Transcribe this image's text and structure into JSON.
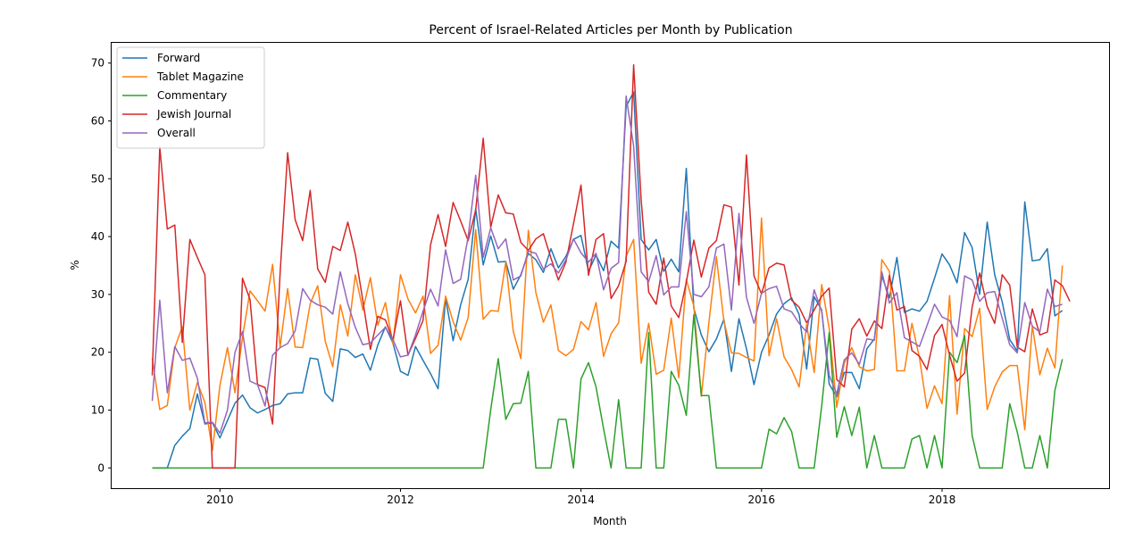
{
  "chart_data": {
    "type": "line",
    "title": "Percent of Israel-Related Articles per Month by Publication",
    "xlabel": "Month",
    "ylabel": "%",
    "xlim": [
      2008.8,
      2019.85
    ],
    "ylim": [
      -3.5,
      73.5
    ],
    "x_ticks": [
      2010,
      2012,
      2014,
      2016,
      2018
    ],
    "y_ticks": [
      0,
      10,
      20,
      30,
      40,
      50,
      60,
      70
    ],
    "grid": false,
    "legend_position": "upper-left",
    "x_start": 2009.25,
    "x_step": 0.08333,
    "series": [
      {
        "name": "Forward",
        "color": "#1f77b4",
        "values": [
          0,
          0,
          0,
          3.9,
          5.5,
          6.8,
          12.8,
          7.6,
          7.8,
          5.2,
          8.2,
          11.2,
          12.6,
          10.4,
          9.5,
          10.1,
          10.8,
          11.1,
          12.8,
          13.0,
          13.0,
          19.0,
          18.8,
          12.9,
          11.5,
          20.6,
          20.3,
          19.1,
          19.7,
          16.9,
          21.3,
          24.4,
          21.6,
          16.7,
          16.0,
          21.0,
          18.6,
          16.3,
          13.7,
          29.3,
          22.0,
          28.2,
          32.6,
          44.8,
          35.1,
          40.1,
          35.6,
          35.7,
          30.9,
          33.4,
          37.1,
          36.0,
          33.8,
          37.9,
          34.6,
          36.6,
          39.5,
          40.2,
          34.0,
          36.8,
          34.1,
          39.2,
          38.0,
          62.5,
          65.0,
          39.5,
          37.7,
          39.5,
          34.0,
          36.1,
          33.9,
          51.8,
          27.6,
          23.0,
          20.1,
          22.3,
          25.7,
          16.7,
          25.8,
          20.6,
          14.4,
          20.0,
          23.0,
          26.6,
          28.4,
          29.4,
          26.5,
          17.1,
          29.6,
          27.3,
          14.5,
          12.3,
          16.5,
          16.5,
          13.7,
          20.6,
          22.3,
          33.2,
          29.4,
          36.4,
          26.9,
          27.5,
          27.1,
          28.8,
          32.8,
          37.0,
          35.1,
          32.0,
          40.7,
          38.1,
          30.0,
          42.5,
          33.4,
          28.7,
          22.2,
          20.2,
          46.0,
          35.8,
          36.0,
          37.9,
          26.3,
          27.2
        ]
      },
      {
        "name": "Tablet Magazine",
        "color": "#ff7f0e",
        "values": [
          19.0,
          10.1,
          10.8,
          20.8,
          24.4,
          10.0,
          14.8,
          11.3,
          3.0,
          14.3,
          20.8,
          13.0,
          22.6,
          30.6,
          28.9,
          27.1,
          35.2,
          20.9,
          31.0,
          20.9,
          20.8,
          28.4,
          31.5,
          21.9,
          17.5,
          28.2,
          22.8,
          33.4,
          27.3,
          32.9,
          24.7,
          28.6,
          21.4,
          33.4,
          29.2,
          26.8,
          29.7,
          19.8,
          21.2,
          29.7,
          25.3,
          22.1,
          26.0,
          41.2,
          25.7,
          27.2,
          27.1,
          35.6,
          23.6,
          18.9,
          41.1,
          30.3,
          25.2,
          28.2,
          20.3,
          19.4,
          20.5,
          25.3,
          23.9,
          28.6,
          19.3,
          23.2,
          25.1,
          36.6,
          39.5,
          18.1,
          25.0,
          16.2,
          16.9,
          25.9,
          15.6,
          32.6,
          28.0,
          12.4,
          25.1,
          36.5,
          25.4,
          19.9,
          19.8,
          19.1,
          18.5,
          43.2,
          19.4,
          25.8,
          19.2,
          17.0,
          14.0,
          24.8,
          16.5,
          31.7,
          24.1,
          10.5,
          18.1,
          20.8,
          17.5,
          16.8,
          17.0,
          36.0,
          34.0,
          16.8,
          16.8,
          25.0,
          19.0,
          10.3,
          14.2,
          11.1,
          29.8,
          9.3,
          24.1,
          22.7,
          27.6,
          10.1,
          14.0,
          16.6,
          17.7,
          17.7,
          6.6,
          24.6,
          16.1,
          20.7,
          17.3,
          35.0
        ]
      },
      {
        "name": "Commentary",
        "color": "#2ca02c",
        "values": [
          0,
          0,
          0,
          0,
          0,
          0,
          0,
          0,
          0,
          0,
          0,
          0,
          0,
          0,
          0,
          0,
          0,
          0,
          0,
          0,
          0,
          0,
          0,
          0,
          0,
          0,
          0,
          0,
          0,
          0,
          0,
          0,
          0,
          0,
          0,
          0,
          0,
          0,
          0,
          0,
          0,
          0,
          0,
          0,
          0,
          10.1,
          18.9,
          8.4,
          11.1,
          11.2,
          16.7,
          0,
          0,
          0,
          8.4,
          8.4,
          0,
          15.4,
          18.2,
          14.0,
          6.8,
          0,
          11.8,
          0,
          0,
          0,
          23.4,
          0,
          0,
          16.7,
          14.3,
          9.1,
          26.5,
          12.5,
          12.5,
          0,
          0,
          0,
          0,
          0,
          0,
          0,
          6.7,
          5.9,
          8.7,
          6.3,
          0,
          0,
          0,
          10.7,
          23.4,
          5.3,
          10.6,
          5.6,
          10.5,
          0,
          5.6,
          0,
          0,
          0,
          0,
          5.0,
          5.6,
          0,
          5.6,
          0,
          20.0,
          18.2,
          22.9,
          5.6,
          0,
          0,
          0,
          0,
          11.1,
          6.2,
          0,
          0,
          5.6,
          0,
          13.4,
          18.8
        ]
      },
      {
        "name": "Jewish Journal",
        "color": "#d62728",
        "values": [
          16.0,
          55.5,
          41.3,
          42.0,
          21.7,
          39.5,
          36.4,
          33.4,
          0,
          0,
          0,
          0,
          32.8,
          29.1,
          14.4,
          13.9,
          7.6,
          33.7,
          54.5,
          42.9,
          39.3,
          48.0,
          34.4,
          32.1,
          38.3,
          37.6,
          42.5,
          37.0,
          28.9,
          20.5,
          26.2,
          25.6,
          22.1,
          28.9,
          19.5,
          22.4,
          25.5,
          38.6,
          43.8,
          38.3,
          45.9,
          42.7,
          39.3,
          44.6,
          57.0,
          41.6,
          47.2,
          44.1,
          43.9,
          39.0,
          37.6,
          39.6,
          40.5,
          36.3,
          32.5,
          35.6,
          42.2,
          48.9,
          33.3,
          39.5,
          40.5,
          29.3,
          31.5,
          35.7,
          69.7,
          46.3,
          30.4,
          28.3,
          36.3,
          28.0,
          26.0,
          32.1,
          39.4,
          33.0,
          38.0,
          39.3,
          45.5,
          45.1,
          31.6,
          54.1,
          33.2,
          30.1,
          34.6,
          35.4,
          35.1,
          29.0,
          27.8,
          25.1,
          27.3,
          29.7,
          31.1,
          15.3,
          14.0,
          24.0,
          25.8,
          22.8,
          25.4,
          24.1,
          33.3,
          27.3,
          27.9,
          20.3,
          19.3,
          17.0,
          22.9,
          24.8,
          19.5,
          15.0,
          16.4,
          27.8,
          33.7,
          27.9,
          25.0,
          33.4,
          31.6,
          20.9,
          20.1,
          27.5,
          23.0,
          23.5,
          32.5,
          31.5,
          28.8
        ]
      },
      {
        "name": "Overall",
        "color": "#9467bd",
        "values": [
          11.6,
          29.0,
          13.0,
          21.0,
          18.6,
          19.0,
          15.5,
          7.8,
          7.9,
          6.0,
          10.0,
          20.0,
          23.6,
          15.0,
          14.4,
          10.7,
          19.5,
          20.8,
          21.5,
          23.7,
          31.0,
          29.0,
          28.2,
          27.8,
          26.6,
          33.9,
          28.4,
          24.3,
          21.3,
          21.6,
          23.0,
          24.3,
          22.2,
          19.2,
          19.5,
          23.0,
          27.1,
          30.9,
          28.0,
          37.7,
          31.9,
          32.6,
          40.0,
          50.6,
          36.4,
          41.5,
          37.9,
          39.6,
          32.5,
          33.2,
          37.5,
          37.1,
          34.4,
          35.3,
          33.7,
          36.0,
          39.6,
          37.2,
          35.6,
          37.1,
          30.8,
          34.5,
          35.5,
          64.3,
          55.6,
          33.9,
          32.2,
          36.7,
          29.9,
          31.3,
          31.3,
          44.3,
          30.0,
          29.6,
          31.3,
          38.0,
          38.7,
          27.3,
          44.0,
          29.5,
          25.0,
          30.2,
          31.0,
          31.4,
          27.5,
          27.0,
          25.0,
          23.5,
          30.8,
          27.1,
          16.0,
          12.8,
          18.7,
          19.9,
          17.9,
          22.3,
          22.1,
          33.9,
          28.5,
          30.3,
          22.5,
          21.8,
          21.0,
          24.6,
          28.3,
          26.1,
          25.5,
          22.7,
          33.2,
          32.5,
          28.8,
          30.3,
          30.5,
          25.9,
          21.3,
          19.9,
          28.6,
          24.5,
          23.5,
          30.9,
          27.9,
          28.3
        ]
      }
    ]
  }
}
